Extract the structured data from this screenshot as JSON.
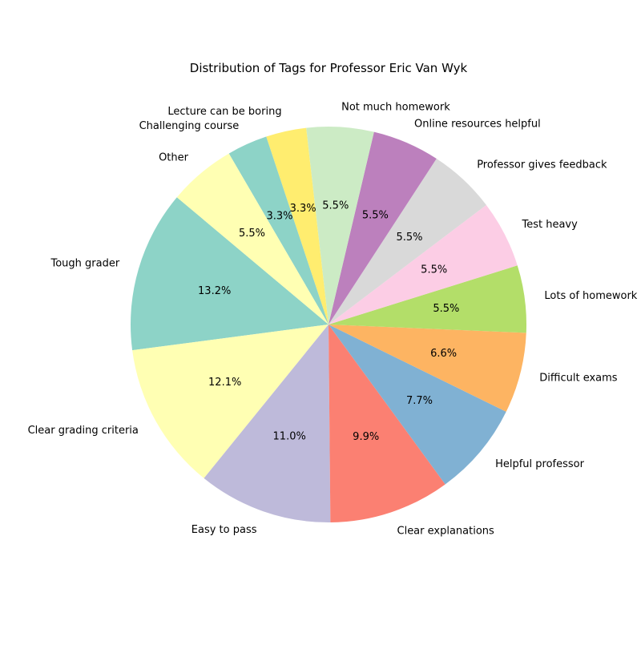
{
  "chart_data": {
    "type": "pie",
    "title": "Distribution of Tags for Professor Eric Van Wyk",
    "start_angle_deg": 140,
    "direction": "counterclockwise",
    "slices": [
      {
        "label": "Tough grader",
        "value": 13.2,
        "pct_text": "13.2%",
        "color": "#8dd3c7"
      },
      {
        "label": "Clear grading criteria",
        "value": 12.1,
        "pct_text": "12.1%",
        "color": "#ffffb3"
      },
      {
        "label": "Easy to pass",
        "value": 11.0,
        "pct_text": "11.0%",
        "color": "#bebada"
      },
      {
        "label": "Clear explanations",
        "value": 9.9,
        "pct_text": "9.9%",
        "color": "#fb8072"
      },
      {
        "label": "Helpful professor",
        "value": 7.7,
        "pct_text": "7.7%",
        "color": "#80b1d3"
      },
      {
        "label": "Difficult exams",
        "value": 6.6,
        "pct_text": "6.6%",
        "color": "#fdb462"
      },
      {
        "label": "Lots of homework",
        "value": 5.5,
        "pct_text": "5.5%",
        "color": "#b3de69"
      },
      {
        "label": "Test heavy",
        "value": 5.5,
        "pct_text": "5.5%",
        "color": "#fccde5"
      },
      {
        "label": "Professor gives feedback",
        "value": 5.5,
        "pct_text": "5.5%",
        "color": "#d9d9d9"
      },
      {
        "label": "Online resources helpful",
        "value": 5.5,
        "pct_text": "5.5%",
        "color": "#bc80bd"
      },
      {
        "label": "Not much homework",
        "value": 5.5,
        "pct_text": "5.5%",
        "color": "#ccebc5"
      },
      {
        "label": "Lecture can be boring",
        "value": 3.3,
        "pct_text": "3.3%",
        "color": "#ffed6f"
      },
      {
        "label": "Challenging course",
        "value": 3.3,
        "pct_text": "3.3%",
        "color": "#8dd3c7"
      },
      {
        "label": "Other",
        "value": 5.5,
        "pct_text": "5.5%",
        "color": "#ffffb3"
      }
    ]
  }
}
